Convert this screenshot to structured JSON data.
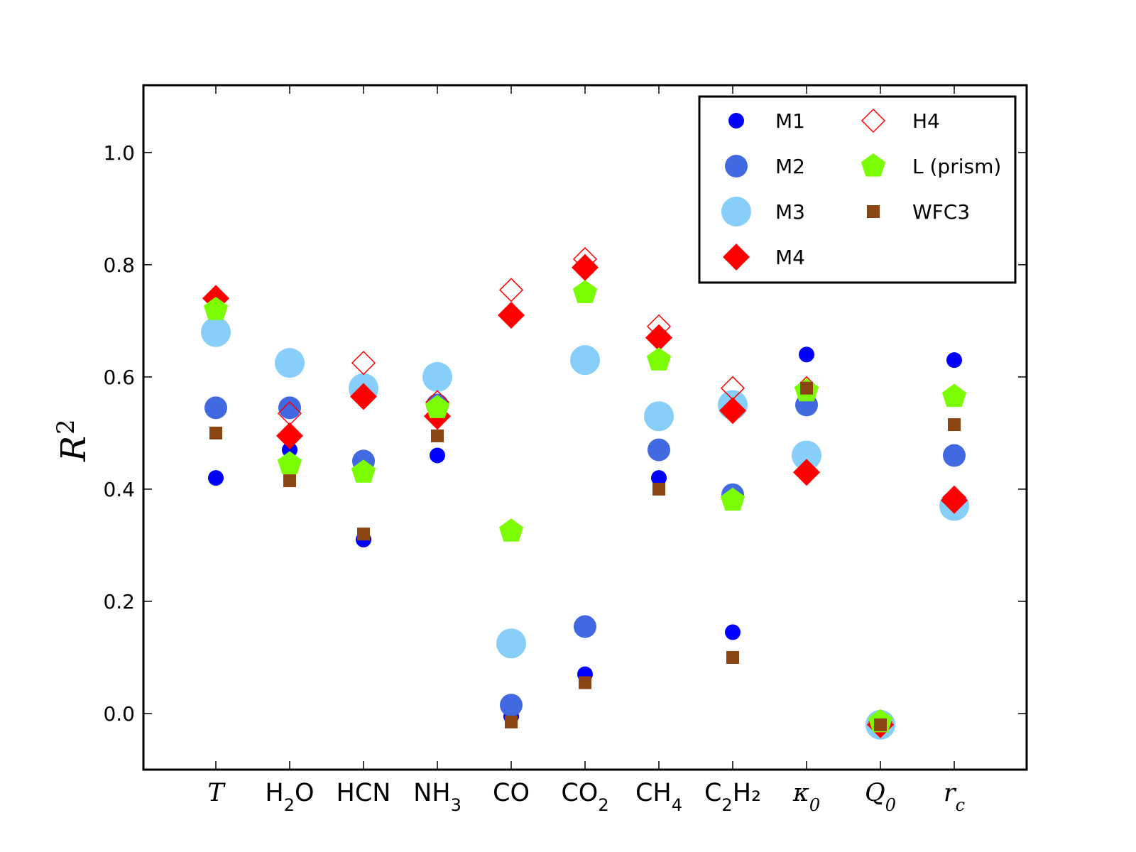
{
  "chart_data": {
    "type": "scatter",
    "title": "",
    "ylabel": "R",
    "ylabel_superscript": "2",
    "xlabel": "",
    "ylim": [
      -0.1,
      1.12
    ],
    "yticks": [
      "0.0",
      "0.2",
      "0.4",
      "0.6",
      "0.8",
      "1.0"
    ],
    "grid": false,
    "legend_placement": "top-right",
    "categories": [
      {
        "base": "T",
        "sub": "",
        "after": "",
        "italic": true
      },
      {
        "base": "H",
        "sub": "2",
        "after": "O",
        "italic": false
      },
      {
        "base": "HCN",
        "sub": "",
        "after": "",
        "italic": false
      },
      {
        "base": "NH",
        "sub": "3",
        "after": "",
        "italic": false
      },
      {
        "base": "CO",
        "sub": "",
        "after": "",
        "italic": false
      },
      {
        "base": "CO",
        "sub": "2",
        "after": "",
        "italic": false
      },
      {
        "base": "CH",
        "sub": "4",
        "after": "",
        "italic": false
      },
      {
        "base": "C",
        "sub": "2",
        "after": "H₂",
        "italic": false
      },
      {
        "base": "κ",
        "sub": "0",
        "after": "",
        "italic": true
      },
      {
        "base": "Q",
        "sub": "0",
        "after": "",
        "italic": true
      },
      {
        "base": "r",
        "sub": "c",
        "after": "",
        "italic": true
      }
    ],
    "series": [
      {
        "name": "M1",
        "marker": "circle-small",
        "color": "#0000ff",
        "values": [
          0.42,
          0.47,
          0.31,
          0.46,
          -0.005,
          0.07,
          0.42,
          0.145,
          0.64,
          -0.015,
          0.63
        ]
      },
      {
        "name": "M2",
        "marker": "circle-medium",
        "color": "#4169e1",
        "values": [
          0.545,
          0.545,
          0.45,
          0.55,
          0.015,
          0.155,
          0.47,
          0.39,
          0.55,
          -0.015,
          0.46
        ]
      },
      {
        "name": "M3",
        "marker": "circle-large",
        "color": "#87cefa",
        "values": [
          0.68,
          0.625,
          0.58,
          0.6,
          0.125,
          0.63,
          0.53,
          0.55,
          0.46,
          -0.02,
          0.37
        ]
      },
      {
        "name": "M4",
        "marker": "diamond-filled",
        "color": "#ff0000",
        "values": [
          0.74,
          0.495,
          0.565,
          0.53,
          0.71,
          0.795,
          0.67,
          0.54,
          0.43,
          -0.02,
          0.38
        ]
      },
      {
        "name": "H4",
        "marker": "diamond-open",
        "color": "#ff0000",
        "values": [
          0.74,
          0.535,
          0.625,
          0.555,
          0.755,
          0.81,
          0.69,
          0.58,
          0.58,
          -0.015,
          0.385
        ]
      },
      {
        "name": "L (prism)",
        "marker": "pentagon",
        "color": "#7cfc00",
        "values": [
          0.72,
          0.445,
          0.43,
          0.545,
          0.325,
          0.75,
          0.63,
          0.38,
          0.575,
          -0.015,
          0.565
        ]
      },
      {
        "name": "WFC3",
        "marker": "square",
        "color": "#8b4513",
        "values": [
          0.5,
          0.415,
          0.32,
          0.495,
          -0.015,
          0.055,
          0.4,
          0.1,
          0.58,
          -0.02,
          0.515
        ]
      }
    ]
  }
}
